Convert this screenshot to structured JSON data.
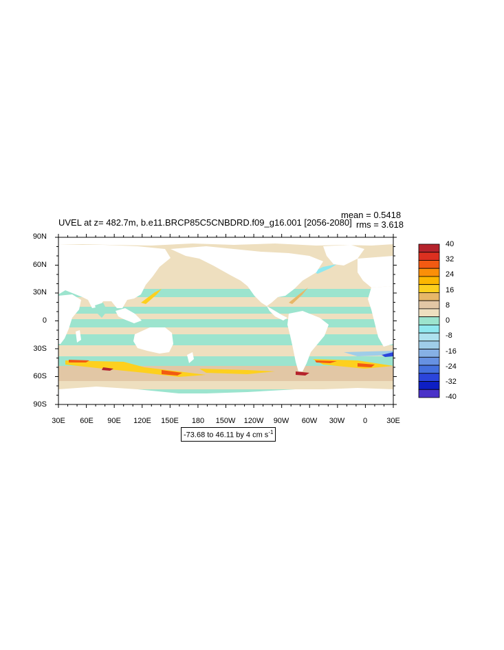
{
  "plot": {
    "title": "UVEL at z= 482.7m, b.e11.BRCP85C5CNBDRD.f09_g16.001 [2056-2080]",
    "mean_label": "mean = 0.5418",
    "rms_label": "rms = 3.618",
    "range_label": "-73.68 to 46.11 by 4 cm s",
    "range_unit_exponent": "-1"
  },
  "axes": {
    "lat_labels": [
      "90N",
      "60N",
      "30N",
      "0",
      "30S",
      "60S",
      "90S"
    ],
    "lon_labels": [
      "30E",
      "60E",
      "90E",
      "120E",
      "150E",
      "180",
      "150W",
      "120W",
      "90W",
      "60W",
      "30W",
      "0",
      "30E"
    ]
  },
  "colorbar": {
    "labels": [
      "40",
      "32",
      "24",
      "16",
      "8",
      "0",
      "-8",
      "-16",
      "-24",
      "-32",
      "-40"
    ],
    "colors": [
      "#b5232c",
      "#dc3020",
      "#f25a12",
      "#fb8f08",
      "#fdb701",
      "#fdd01e",
      "#e7b768",
      "#e2c7a5",
      "#eedfbf",
      "#9ce4ce",
      "#8fe8ef",
      "#aee2ef",
      "#9fcde8",
      "#86b0e5",
      "#6691e2",
      "#4470de",
      "#2b45db",
      "#0e1fc4",
      "#4a32c8"
    ]
  },
  "colors": {
    "land": "#ffffff",
    "weak_positive": "#eedfbf",
    "weak_negative": "#9ce4ce",
    "moderate_positive": "#e2c7a5",
    "strong_positive": "#fdd01e",
    "very_strong": "#f25a12",
    "extreme": "#b5232c",
    "strong_negative": "#2b45db"
  }
}
